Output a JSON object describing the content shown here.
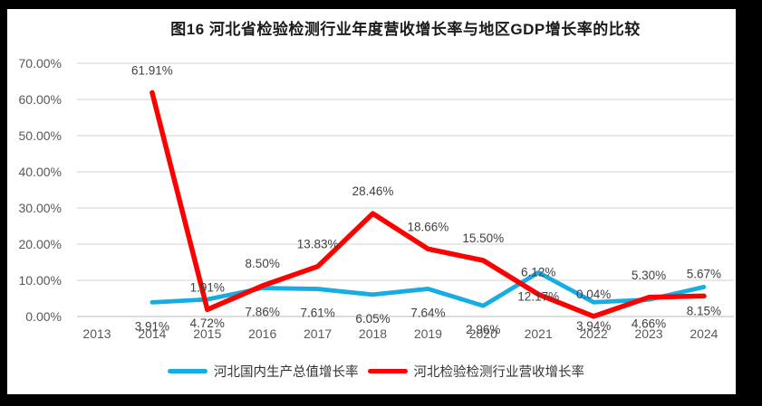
{
  "page": {
    "frame_color": "#000000",
    "panel_background": "#ffffff"
  },
  "chart_data": {
    "type": "line",
    "title": "图16 河北省检验检测行业年度营收增长率与地区GDP增长率的比较",
    "categories": [
      "2013",
      "2014",
      "2015",
      "2016",
      "2017",
      "2018",
      "2019",
      "2020",
      "2021",
      "2022",
      "2023",
      "2024"
    ],
    "y_axis": {
      "min": 0,
      "max": 70,
      "step": 10,
      "tick_labels": [
        "0.00%",
        "10.00%",
        "20.00%",
        "30.00%",
        "40.00%",
        "50.00%",
        "60.00%",
        "70.00%"
      ],
      "format": "percent"
    },
    "grid": true,
    "legend_position": "bottom",
    "series": [
      {
        "id": "gdp-growth",
        "name": "河北国内生产总值增长率",
        "color": "#16ACE4",
        "label_position": "below",
        "values": [
          null,
          3.91,
          4.72,
          7.86,
          7.61,
          6.05,
          7.64,
          2.96,
          12.17,
          3.94,
          4.66,
          8.15
        ]
      },
      {
        "id": "testing-revenue-growth",
        "name": "河北检验检测行业营收增长率",
        "color": "#FE0000",
        "label_position": "above",
        "values": [
          null,
          61.91,
          1.91,
          8.5,
          13.83,
          28.46,
          18.66,
          15.5,
          6.12,
          0.04,
          5.3,
          5.67
        ]
      }
    ]
  }
}
